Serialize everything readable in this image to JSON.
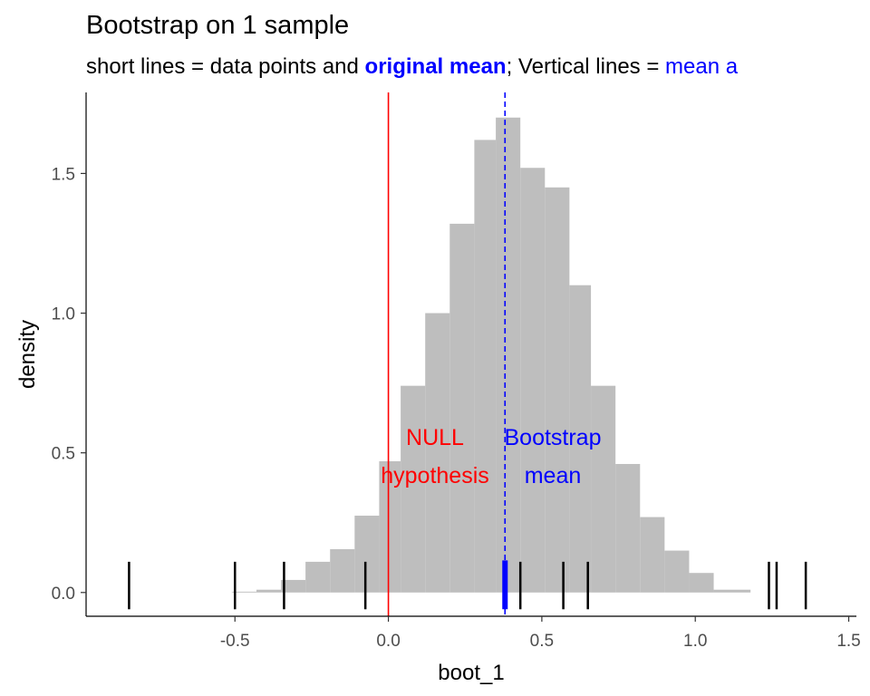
{
  "chart_data": {
    "type": "bar",
    "title": "Bootstrap on 1 sample",
    "subtitle": {
      "part1": "short lines = data points and ",
      "part2": "original mean",
      "part3": "; Vertical lines = ",
      "part4": "mean",
      "part5": " a"
    },
    "xlabel": "boot_1",
    "ylabel": "density",
    "xlim": [
      -0.985,
      1.525
    ],
    "ylim": [
      -0.085,
      1.79
    ],
    "x_ticks": [
      {
        "value": -0.5,
        "label": "-0.5"
      },
      {
        "value": 0.0,
        "label": "0.0"
      },
      {
        "value": 0.5,
        "label": "0.5"
      },
      {
        "value": 1.0,
        "label": "1.0"
      },
      {
        "value": 1.5,
        "label": "1.5"
      }
    ],
    "y_ticks": [
      {
        "value": 0.0,
        "label": "0.0"
      },
      {
        "value": 0.5,
        "label": "0.5"
      },
      {
        "value": 1.0,
        "label": "1.0"
      },
      {
        "value": 1.5,
        "label": "1.5"
      }
    ],
    "histogram": {
      "bin_edges": [
        -0.51,
        -0.43,
        -0.35,
        -0.27,
        -0.19,
        -0.11,
        -0.03,
        0.04,
        0.12,
        0.2,
        0.28,
        0.35,
        0.43,
        0.51,
        0.59,
        0.66,
        0.74,
        0.82,
        0.9,
        0.98,
        1.06,
        1.18
      ],
      "density": [
        0.003,
        0.01,
        0.045,
        0.11,
        0.155,
        0.275,
        0.47,
        0.74,
        1.0,
        1.32,
        1.62,
        1.7,
        1.52,
        1.45,
        1.1,
        0.74,
        0.46,
        0.27,
        0.15,
        0.07,
        0.01
      ],
      "color": "#bebebe"
    },
    "data_points": [
      -0.845,
      -0.5,
      -0.34,
      -0.075,
      0.43,
      0.57,
      0.65,
      1.24,
      1.265,
      1.36
    ],
    "original_mean": 0.38,
    "null_hypothesis": 0.0,
    "bootstrap_mean": 0.38,
    "annotations": {
      "null_line1": "NULL",
      "null_line2": "hypothesis",
      "boot_line1": "Bootstrap",
      "boot_line2": "mean"
    },
    "colors": {
      "null": "#ff0000",
      "mean": "#0000ff",
      "points": "#000000",
      "axis": "#000000"
    },
    "grid": false,
    "legend": "none"
  }
}
